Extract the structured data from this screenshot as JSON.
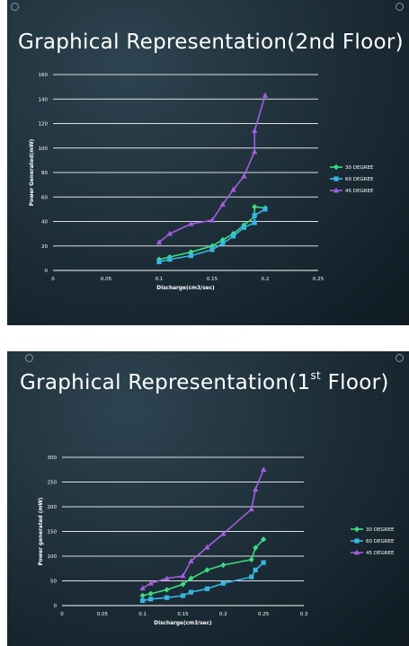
{
  "slides": [
    {
      "title": "Graphical Representation(2nd Floor)"
    },
    {
      "title_prefix": "Graphical Representation(1",
      "title_sup": "st",
      "title_suffix": " Floor)"
    }
  ],
  "colors": {
    "series_30": "#3ddc84",
    "series_60": "#37b6e3",
    "series_45": "#a35ee0",
    "grid": "#ffffff",
    "text": "#ffffff"
  },
  "chart_data": [
    {
      "type": "line",
      "title": "",
      "xlabel": "Discharge(cm3/sec)",
      "ylabel": "Power Generated(mW)",
      "xlim": [
        0,
        0.25
      ],
      "ylim": [
        0,
        160
      ],
      "x_ticks": [
        "0",
        "0.05",
        "0.1",
        "0.15",
        "0.2",
        "0.25"
      ],
      "y_ticks": [
        "0",
        "20",
        "40",
        "60",
        "80",
        "100",
        "120",
        "140",
        "160"
      ],
      "grid": true,
      "legend_position": "right",
      "series": [
        {
          "name": "30 DEGREE",
          "color_key": "series_30",
          "marker": "diamond",
          "x": [
            0.1,
            0.11,
            0.13,
            0.15,
            0.16,
            0.17,
            0.18,
            0.19,
            0.19,
            0.2
          ],
          "y": [
            9,
            11,
            15,
            20,
            25,
            30,
            37,
            44,
            52,
            51
          ]
        },
        {
          "name": "60 DEGREE",
          "color_key": "series_60",
          "marker": "square",
          "x": [
            0.1,
            0.11,
            0.13,
            0.15,
            0.16,
            0.17,
            0.18,
            0.19,
            0.19,
            0.2
          ],
          "y": [
            7,
            9,
            12,
            17,
            22,
            28,
            35,
            39,
            45,
            50
          ]
        },
        {
          "name": "45 DEGREE",
          "color_key": "series_45",
          "marker": "triangle",
          "x": [
            0.1,
            0.11,
            0.13,
            0.15,
            0.16,
            0.17,
            0.18,
            0.19,
            0.19,
            0.2
          ],
          "y": [
            23,
            30,
            38,
            41,
            54,
            66,
            77,
            97,
            114,
            143
          ]
        }
      ]
    },
    {
      "type": "line",
      "title": "",
      "xlabel": "Discharge(cm3/sec)",
      "ylabel": "Power generated (mW)",
      "xlim": [
        0,
        0.3
      ],
      "ylim": [
        0,
        300
      ],
      "x_ticks": [
        "0",
        "0.05",
        "0.1",
        "0.15",
        "0.2",
        "0.25",
        "0.3"
      ],
      "y_ticks": [
        "0",
        "50",
        "100",
        "150",
        "200",
        "250",
        "300"
      ],
      "grid": true,
      "legend_position": "right",
      "series": [
        {
          "name": "30 DEGREE",
          "color_key": "series_30",
          "marker": "diamond",
          "x": [
            0.1,
            0.11,
            0.13,
            0.15,
            0.16,
            0.18,
            0.2,
            0.235,
            0.24,
            0.25
          ],
          "y": [
            20,
            24,
            32,
            43,
            55,
            72,
            82,
            93,
            117,
            134
          ]
        },
        {
          "name": "60 DEGREE",
          "color_key": "series_60",
          "marker": "square",
          "x": [
            0.1,
            0.11,
            0.13,
            0.15,
            0.16,
            0.18,
            0.2,
            0.235,
            0.24,
            0.25
          ],
          "y": [
            10,
            13,
            16,
            20,
            27,
            34,
            45,
            58,
            72,
            87
          ]
        },
        {
          "name": "45 DEGREE",
          "color_key": "series_45",
          "marker": "triangle",
          "x": [
            0.1,
            0.11,
            0.13,
            0.15,
            0.16,
            0.18,
            0.2,
            0.235,
            0.24,
            0.25
          ],
          "y": [
            35,
            45,
            55,
            60,
            90,
            118,
            145,
            195,
            235,
            275
          ]
        }
      ]
    }
  ]
}
